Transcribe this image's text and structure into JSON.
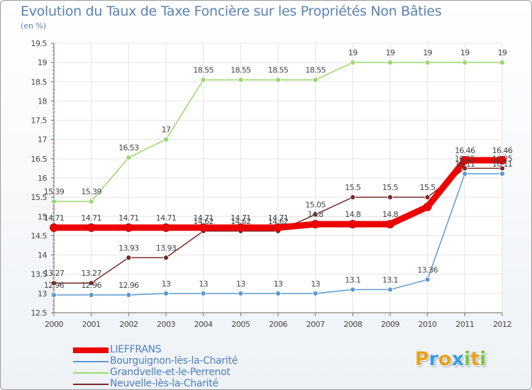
{
  "header": {
    "title": "Evolution du Taux de Taxe Foncière sur les Propriétés Non Bâties",
    "subtitle": "(en %)"
  },
  "logo": {
    "text": "Proxiti",
    "letters": [
      {
        "ch": "P",
        "color": "#e8a21a"
      },
      {
        "ch": "r",
        "color": "#3c9be0"
      },
      {
        "ch": "o",
        "color": "#e8a21a"
      },
      {
        "ch": "x",
        "color": "#3c9be0"
      },
      {
        "ch": "i",
        "color": "#7cc242"
      },
      {
        "ch": "t",
        "color": "#e8a21a"
      },
      {
        "ch": "i",
        "color": "#7cc242"
      }
    ]
  },
  "chart_data": {
    "type": "line",
    "title": "Evolution du Taux de Taxe Foncière sur les Propriétés Non Bâties",
    "ylabel": "(en %)",
    "xlabel": "",
    "x": [
      "2000",
      "2001",
      "2002",
      "2003",
      "2004",
      "2005",
      "2006",
      "2007",
      "2008",
      "2009",
      "2010",
      "2011",
      "2012"
    ],
    "ylim": [
      12.5,
      19.5
    ],
    "yticks": [
      "12.5",
      "13",
      "13.5",
      "14",
      "14.5",
      "15",
      "15.5",
      "16",
      "16.5",
      "17",
      "17.5",
      "18",
      "18.5",
      "19",
      "19.5"
    ],
    "grid": true,
    "legend_position": "bottom-left",
    "series": [
      {
        "name": "LIEFFRANS",
        "color": "#ee0000",
        "values": [
          14.71,
          14.71,
          14.71,
          14.71,
          14.71,
          14.71,
          14.71,
          14.8,
          14.8,
          14.8,
          15.25,
          16.46,
          16.46
        ],
        "labels": [
          "14.71",
          "14.71",
          "14.71",
          "14.71",
          "14.71",
          "14.71",
          "14.71",
          "14.8",
          "14.8",
          "14.8",
          "",
          "16.46",
          "16.46"
        ]
      },
      {
        "name": "Bourguignon-lès-la-Charité",
        "color": "#5d9ad2",
        "values": [
          12.96,
          12.96,
          12.96,
          13,
          13,
          13,
          13,
          13,
          13.1,
          13.1,
          13.36,
          16.11,
          16.11
        ],
        "labels": [
          "12.96",
          "12.96",
          "12.96",
          "13",
          "13",
          "13",
          "13",
          "13",
          "13.1",
          "13.1",
          "13.36",
          "16.11",
          "16.11"
        ]
      },
      {
        "name": "Grandvelle-et-le-Perrenot",
        "color": "#9ad86c",
        "values": [
          15.39,
          15.39,
          16.53,
          17,
          18.55,
          18.55,
          18.55,
          18.55,
          19,
          19,
          19,
          19,
          19
        ],
        "labels": [
          "15.39",
          "15.39",
          "16.53",
          "17",
          "18.55",
          "18.55",
          "18.55",
          "18.55",
          "19",
          "19",
          "19",
          "19",
          "19"
        ]
      },
      {
        "name": "Neuvelle-lès-la-Charité",
        "color": "#7a2a2a",
        "values": [
          13.27,
          13.27,
          13.93,
          13.93,
          14.62,
          14.62,
          14.62,
          15.05,
          15.5,
          15.5,
          15.5,
          16.25,
          16.25
        ],
        "labels": [
          "13.27",
          "13.27",
          "13.93",
          "13.93",
          "14.62",
          "14.62",
          "14.62",
          "15.05",
          "15.5",
          "15.5",
          "15.5",
          "16.25",
          "16.25"
        ]
      }
    ]
  }
}
